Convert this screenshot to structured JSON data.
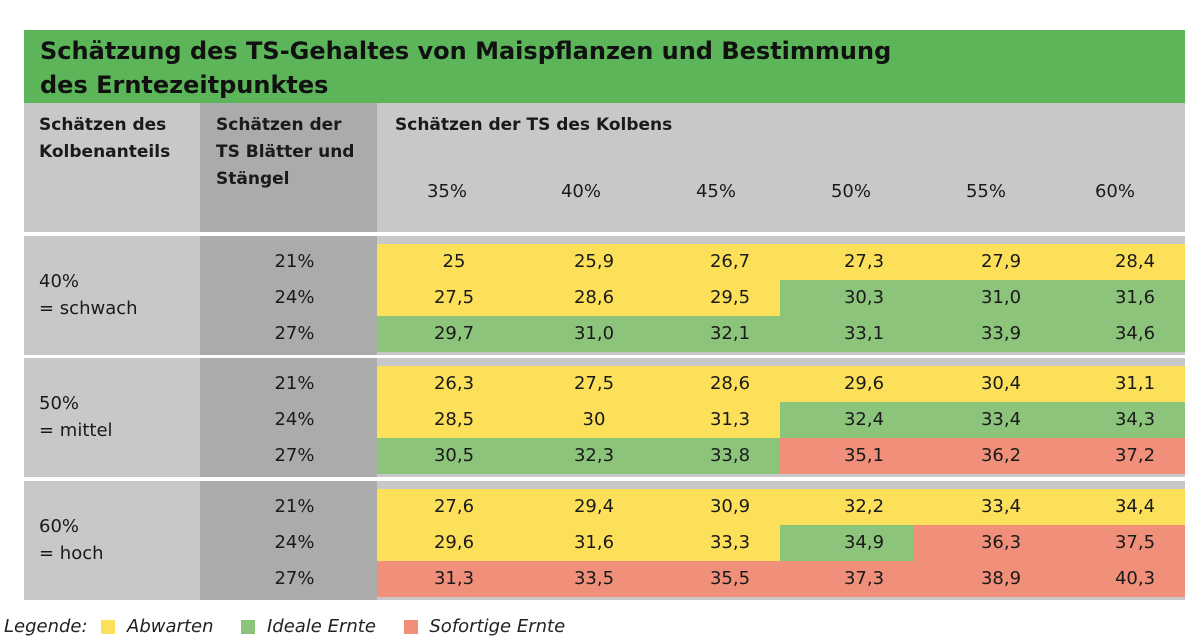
{
  "title": {
    "line1": "Schätzung des TS-Gehaltes von Maispflanzen und Bestimmung",
    "line2": "des Erntezeitpunktes"
  },
  "header": {
    "col1": [
      "Schätzen des",
      "Kolbenanteils"
    ],
    "col2": [
      "Schätzen der",
      "TS Blätter und",
      "Stängel"
    ],
    "col3": "Schätzen der TS des Kolbens",
    "percentages": [
      "35%",
      "40%",
      "45%",
      "50%",
      "55%",
      "60%"
    ]
  },
  "colors": {
    "abwarten": "#fde05a",
    "ideale_ernte": "#8cc47c",
    "sofortige_ernte": "#f0907a"
  },
  "groups": [
    {
      "label": [
        "40%",
        "= schwach"
      ],
      "rows": [
        {
          "leaf": "21%",
          "values": [
            "25",
            "25,9",
            "26,7",
            "27,3",
            "27,9",
            "28,4"
          ],
          "status": [
            "abwarten",
            "abwarten",
            "abwarten",
            "abwarten",
            "abwarten",
            "abwarten"
          ]
        },
        {
          "leaf": "24%",
          "values": [
            "27,5",
            "28,6",
            "29,5",
            "30,3",
            "31,0",
            "31,6"
          ],
          "status": [
            "abwarten",
            "abwarten",
            "abwarten",
            "ideale_ernte",
            "ideale_ernte",
            "ideale_ernte"
          ]
        },
        {
          "leaf": "27%",
          "values": [
            "29,7",
            "31,0",
            "32,1",
            "33,1",
            "33,9",
            "34,6"
          ],
          "status": [
            "ideale_ernte",
            "ideale_ernte",
            "ideale_ernte",
            "ideale_ernte",
            "ideale_ernte",
            "ideale_ernte"
          ]
        }
      ]
    },
    {
      "label": [
        "50%",
        "= mittel"
      ],
      "rows": [
        {
          "leaf": "21%",
          "values": [
            "26,3",
            "27,5",
            "28,6",
            "29,6",
            "30,4",
            "31,1"
          ],
          "status": [
            "abwarten",
            "abwarten",
            "abwarten",
            "abwarten",
            "abwarten",
            "abwarten"
          ]
        },
        {
          "leaf": "24%",
          "values": [
            "28,5",
            "30",
            "31,3",
            "32,4",
            "33,4",
            "34,3"
          ],
          "status": [
            "abwarten",
            "abwarten",
            "abwarten",
            "ideale_ernte",
            "ideale_ernte",
            "ideale_ernte"
          ]
        },
        {
          "leaf": "27%",
          "values": [
            "30,5",
            "32,3",
            "33,8",
            "35,1",
            "36,2",
            "37,2"
          ],
          "status": [
            "ideale_ernte",
            "ideale_ernte",
            "ideale_ernte",
            "sofortige_ernte",
            "sofortige_ernte",
            "sofortige_ernte"
          ]
        }
      ]
    },
    {
      "label": [
        "60%",
        "= hoch"
      ],
      "rows": [
        {
          "leaf": "21%",
          "values": [
            "27,6",
            "29,4",
            "30,9",
            "32,2",
            "33,4",
            "34,4"
          ],
          "status": [
            "abwarten",
            "abwarten",
            "abwarten",
            "abwarten",
            "abwarten",
            "abwarten"
          ]
        },
        {
          "leaf": "24%",
          "values": [
            "29,6",
            "31,6",
            "33,3",
            "34,9",
            "36,3",
            "37,5"
          ],
          "status": [
            "abwarten",
            "abwarten",
            "abwarten",
            "ideale_ernte",
            "sofortige_ernte",
            "sofortige_ernte"
          ]
        },
        {
          "leaf": "27%",
          "values": [
            "31,3",
            "33,5",
            "35,5",
            "37,3",
            "38,9",
            "40,3"
          ],
          "status": [
            "sofortige_ernte",
            "sofortige_ernte",
            "sofortige_ernte",
            "sofortige_ernte",
            "sofortige_ernte",
            "sofortige_ernte"
          ]
        }
      ]
    }
  ],
  "legend": {
    "prefix": "Legende:",
    "abwarten": "Abwarten",
    "ideale_ernte": "Ideale Ernte",
    "sofortige_ernte": "Sofortige Ernte"
  }
}
